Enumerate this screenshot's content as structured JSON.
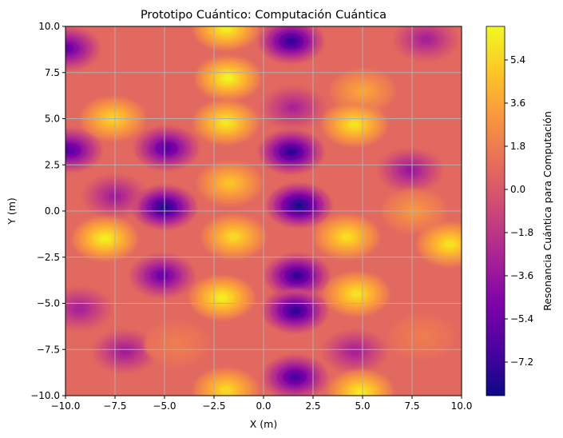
{
  "chart_data": {
    "type": "heatmap",
    "title": "Prototipo Cuántico: Computación Cuántica",
    "xlabel": "X (m)",
    "ylabel": "Y (m)",
    "xlim": [
      -10,
      10
    ],
    "ylim": [
      -10,
      10
    ],
    "x_ticks": [
      "−10.0",
      "−7.5",
      "−5.0",
      "−2.5",
      "0.0",
      "2.5",
      "5.0",
      "7.5",
      "10.0"
    ],
    "x_tick_values": [
      -10,
      -7.5,
      -5,
      -2.5,
      0,
      2.5,
      5,
      7.5,
      10
    ],
    "y_ticks": [
      "−10.0",
      "−7.5",
      "−5.0",
      "−2.5",
      "0.0",
      "2.5",
      "5.0",
      "7.5",
      "10.0"
    ],
    "y_tick_values": [
      -10,
      -7.5,
      -5,
      -2.5,
      0,
      2.5,
      5,
      7.5,
      10
    ],
    "grid": true,
    "colormap": "plasma",
    "colorbar": {
      "label": "Resonancia Cuántica para Computación",
      "ticks": [
        "5.4",
        "3.6",
        "1.8",
        "0.0",
        "−1.8",
        "−3.6",
        "−5.4",
        "−7.2"
      ],
      "tick_values": [
        5.4,
        3.6,
        1.8,
        0.0,
        -1.8,
        -3.6,
        -5.4,
        -7.2
      ],
      "range": [
        -8.6,
        6.8
      ]
    },
    "features": [
      {
        "x": -1.9,
        "y": 9.9,
        "value": 6.5
      },
      {
        "x": 1.4,
        "y": 9.2,
        "value": -7.4
      },
      {
        "x": -9.9,
        "y": 8.8,
        "value": -5.6
      },
      {
        "x": 8.2,
        "y": 9.3,
        "value": -3.0
      },
      {
        "x": -1.8,
        "y": 7.2,
        "value": 6.6
      },
      {
        "x": 5.0,
        "y": 6.5,
        "value": 3.6
      },
      {
        "x": -7.6,
        "y": 5.0,
        "value": 5.4
      },
      {
        "x": -1.9,
        "y": 4.8,
        "value": 6.2
      },
      {
        "x": 4.6,
        "y": 4.7,
        "value": 6.0
      },
      {
        "x": 1.5,
        "y": 5.6,
        "value": -2.8
      },
      {
        "x": -9.8,
        "y": 3.3,
        "value": -6.2
      },
      {
        "x": -4.9,
        "y": 3.4,
        "value": -6.2
      },
      {
        "x": 1.4,
        "y": 3.2,
        "value": -7.6
      },
      {
        "x": -1.7,
        "y": 1.5,
        "value": 4.8
      },
      {
        "x": 7.4,
        "y": 2.2,
        "value": -3.5
      },
      {
        "x": -7.5,
        "y": 0.8,
        "value": -3.2
      },
      {
        "x": -5.0,
        "y": 0.2,
        "value": -8.2
      },
      {
        "x": 1.8,
        "y": 0.3,
        "value": -8.4
      },
      {
        "x": 7.6,
        "y": 0.0,
        "value": 3.0
      },
      {
        "x": -8.0,
        "y": -1.5,
        "value": 6.4
      },
      {
        "x": -1.5,
        "y": -1.4,
        "value": 5.6
      },
      {
        "x": 4.2,
        "y": -1.4,
        "value": 5.8
      },
      {
        "x": 9.4,
        "y": -1.8,
        "value": 6.0
      },
      {
        "x": -5.1,
        "y": -3.5,
        "value": -5.5
      },
      {
        "x": 1.7,
        "y": -3.5,
        "value": -7.4
      },
      {
        "x": -2.1,
        "y": -4.7,
        "value": 6.4
      },
      {
        "x": 4.7,
        "y": -4.5,
        "value": 6.0
      },
      {
        "x": 1.6,
        "y": -5.4,
        "value": -7.6
      },
      {
        "x": -9.3,
        "y": -5.3,
        "value": -3.0
      },
      {
        "x": -7.0,
        "y": -7.6,
        "value": -3.2
      },
      {
        "x": 4.6,
        "y": -7.6,
        "value": -3.0
      },
      {
        "x": 1.6,
        "y": -9.0,
        "value": -6.6
      },
      {
        "x": -1.9,
        "y": -9.7,
        "value": 5.6
      },
      {
        "x": 4.9,
        "y": -9.8,
        "value": 6.2
      },
      {
        "x": -4.4,
        "y": -7.2,
        "value": 1.8
      },
      {
        "x": 8.0,
        "y": -6.8,
        "value": 1.8
      }
    ]
  }
}
